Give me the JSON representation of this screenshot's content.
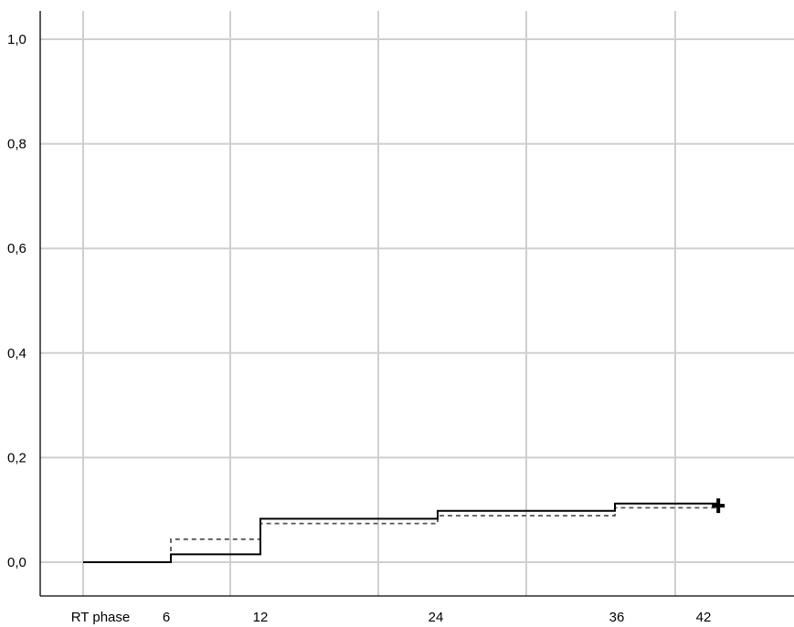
{
  "chart_data": {
    "type": "line",
    "title": "",
    "xlabel": "",
    "ylabel": "",
    "x_ticks": [
      "RT phase",
      "6",
      "12",
      "24",
      "36",
      "42"
    ],
    "y_ticks": [
      "1,0",
      "0,8",
      "0,6",
      "0,4",
      "0,2",
      "0,0"
    ],
    "ylim": [
      0,
      1
    ],
    "grid": true,
    "series": [
      {
        "style": "solid",
        "color": "#000000",
        "points": [
          {
            "x": 0,
            "y": 0.0
          },
          {
            "x": 6,
            "y": 0.0
          },
          {
            "x": 6,
            "y": 0.015
          },
          {
            "x": 12,
            "y": 0.015
          },
          {
            "x": 12,
            "y": 0.083
          },
          {
            "x": 24,
            "y": 0.083
          },
          {
            "x": 24,
            "y": 0.098
          },
          {
            "x": 36,
            "y": 0.098
          },
          {
            "x": 36,
            "y": 0.112
          },
          {
            "x": 43,
            "y": 0.112
          }
        ],
        "censored": [
          {
            "x": 43,
            "y": 0.108
          }
        ]
      },
      {
        "style": "dashed",
        "color": "#555555",
        "points": [
          {
            "x": 0,
            "y": 0.0
          },
          {
            "x": 6,
            "y": 0.0
          },
          {
            "x": 6,
            "y": 0.044
          },
          {
            "x": 12,
            "y": 0.044
          },
          {
            "x": 12,
            "y": 0.074
          },
          {
            "x": 24,
            "y": 0.074
          },
          {
            "x": 24,
            "y": 0.089
          },
          {
            "x": 36,
            "y": 0.089
          },
          {
            "x": 36,
            "y": 0.104
          },
          {
            "x": 43,
            "y": 0.104
          }
        ]
      }
    ]
  }
}
